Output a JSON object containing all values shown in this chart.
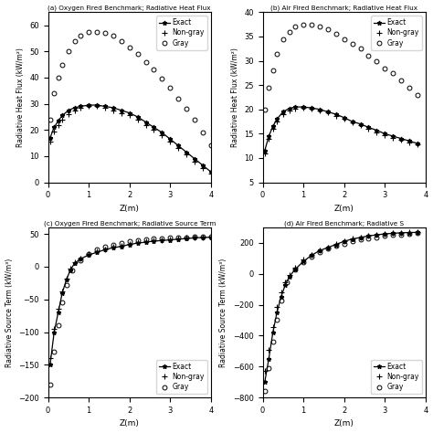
{
  "title_a": "(a) Oxygen Fired Benchmark; Radiative Heat Flux",
  "title_b": "(b) Air Fired Benchmark; Radiative Heat Flux",
  "title_c": "(c) Oxygen Fired Benchmark; Radiative Source Term",
  "title_d": "(d) Air Fired Benchmark; Radiative S",
  "xlabel": "Z(m)",
  "ylabel_heat": "Radiative Heat Flux (kW/m²)",
  "ylabel_source": "Radiative Source Term (kW/m³)",
  "legend_labels": [
    "Exact",
    "Non-gray",
    "Gray"
  ],
  "background_color": "#ffffff",
  "panel_a": {
    "exact_x": [
      0.05,
      0.15,
      0.25,
      0.35,
      0.5,
      0.65,
      0.8,
      1.0,
      1.2,
      1.4,
      1.6,
      1.8,
      2.0,
      2.2,
      2.4,
      2.6,
      2.8,
      3.0,
      3.2,
      3.4,
      3.6,
      3.8,
      4.0
    ],
    "exact_y": [
      17.0,
      21.0,
      23.5,
      25.5,
      27.5,
      28.5,
      29.0,
      29.5,
      29.5,
      29.0,
      28.5,
      27.5,
      26.5,
      25.0,
      23.0,
      21.0,
      19.0,
      16.5,
      14.0,
      11.5,
      9.0,
      6.5,
      4.0
    ],
    "nongray_x": [
      0.05,
      0.15,
      0.25,
      0.35,
      0.5,
      0.65,
      0.8,
      1.0,
      1.2,
      1.4,
      1.6,
      1.8,
      2.0,
      2.2,
      2.4,
      2.6,
      2.8,
      3.0,
      3.2,
      3.4,
      3.6,
      3.8,
      4.0
    ],
    "nongray_y": [
      15.5,
      19.5,
      22.0,
      24.0,
      26.0,
      27.5,
      28.5,
      29.0,
      29.0,
      28.5,
      27.5,
      26.5,
      25.5,
      24.0,
      22.0,
      20.0,
      18.0,
      15.5,
      13.0,
      10.5,
      8.0,
      5.5,
      3.5
    ],
    "gray_x": [
      0.05,
      0.15,
      0.25,
      0.35,
      0.5,
      0.65,
      0.8,
      1.0,
      1.2,
      1.4,
      1.6,
      1.8,
      2.0,
      2.2,
      2.4,
      2.6,
      2.8,
      3.0,
      3.2,
      3.4,
      3.6,
      3.8,
      4.0
    ],
    "gray_y": [
      24.0,
      34.0,
      40.0,
      45.0,
      50.0,
      54.0,
      56.0,
      57.5,
      57.5,
      57.0,
      56.0,
      54.0,
      51.5,
      49.0,
      46.0,
      43.0,
      39.5,
      36.0,
      32.0,
      28.0,
      24.0,
      19.0,
      14.0
    ],
    "ylim": [
      0,
      65
    ],
    "xlim": [
      0,
      4
    ]
  },
  "panel_b": {
    "exact_x": [
      0.05,
      0.15,
      0.25,
      0.35,
      0.5,
      0.65,
      0.8,
      1.0,
      1.2,
      1.4,
      1.6,
      1.8,
      2.0,
      2.2,
      2.4,
      2.6,
      2.8,
      3.0,
      3.2,
      3.4,
      3.6,
      3.8
    ],
    "exact_y": [
      11.5,
      14.5,
      16.5,
      18.0,
      19.5,
      20.2,
      20.5,
      20.5,
      20.3,
      20.0,
      19.5,
      19.0,
      18.3,
      17.5,
      17.0,
      16.3,
      15.7,
      15.0,
      14.5,
      14.0,
      13.5,
      13.0
    ],
    "nongray_x": [
      0.05,
      0.15,
      0.25,
      0.35,
      0.5,
      0.65,
      0.8,
      1.0,
      1.2,
      1.4,
      1.6,
      1.8,
      2.0,
      2.2,
      2.4,
      2.6,
      2.8,
      3.0,
      3.2,
      3.4,
      3.6,
      3.8
    ],
    "nongray_y": [
      11.0,
      14.0,
      16.0,
      17.5,
      19.0,
      19.8,
      20.2,
      20.3,
      20.1,
      19.8,
      19.3,
      18.7,
      18.0,
      17.3,
      16.7,
      16.0,
      15.3,
      14.7,
      14.2,
      13.7,
      13.2,
      12.8
    ],
    "gray_x": [
      0.05,
      0.15,
      0.25,
      0.35,
      0.5,
      0.65,
      0.8,
      1.0,
      1.2,
      1.4,
      1.6,
      1.8,
      2.0,
      2.2,
      2.4,
      2.6,
      2.8,
      3.0,
      3.2,
      3.4,
      3.6,
      3.8
    ],
    "gray_y": [
      20.0,
      24.5,
      28.0,
      31.5,
      34.5,
      36.0,
      37.0,
      37.5,
      37.5,
      37.0,
      36.5,
      35.5,
      34.5,
      33.5,
      32.5,
      31.0,
      30.0,
      28.5,
      27.5,
      26.0,
      24.5,
      23.0
    ],
    "ylim": [
      5,
      40
    ],
    "xlim": [
      0,
      4
    ]
  },
  "panel_c": {
    "exact_x": [
      0.05,
      0.15,
      0.25,
      0.35,
      0.45,
      0.55,
      0.65,
      0.8,
      1.0,
      1.2,
      1.4,
      1.6,
      1.8,
      2.0,
      2.2,
      2.4,
      2.6,
      2.8,
      3.0,
      3.2,
      3.4,
      3.6,
      3.8,
      4.0
    ],
    "exact_y": [
      -150.0,
      -100.0,
      -70.0,
      -40.0,
      -20.0,
      -5.0,
      5.0,
      12.0,
      18.0,
      22.0,
      26.0,
      29.0,
      31.0,
      34.0,
      36.0,
      37.5,
      39.0,
      40.0,
      41.0,
      42.0,
      43.0,
      44.0,
      44.5,
      45.0
    ],
    "nongray_x": [
      0.05,
      0.15,
      0.25,
      0.35,
      0.45,
      0.55,
      0.65,
      0.8,
      1.0,
      1.2,
      1.4,
      1.6,
      1.8,
      2.0,
      2.2,
      2.4,
      2.6,
      2.8,
      3.0,
      3.2,
      3.4,
      3.6,
      3.8,
      4.0
    ],
    "nongray_y": [
      -140.0,
      -95.0,
      -65.0,
      -38.0,
      -18.0,
      -3.0,
      6.5,
      13.0,
      19.0,
      23.0,
      27.0,
      30.0,
      32.0,
      35.0,
      37.0,
      38.5,
      40.0,
      41.0,
      42.0,
      43.0,
      44.0,
      44.5,
      45.0,
      45.5
    ],
    "gray_x": [
      0.05,
      0.15,
      0.25,
      0.35,
      0.45,
      0.6,
      0.8,
      1.0,
      1.2,
      1.4,
      1.6,
      1.8,
      2.0,
      2.2,
      2.4,
      2.6,
      2.8,
      3.0,
      3.2,
      3.4,
      3.6,
      3.8,
      4.0
    ],
    "gray_y": [
      -180.0,
      -130.0,
      -90.0,
      -55.0,
      -28.0,
      -5.0,
      10.0,
      20.0,
      27.0,
      31.0,
      34.0,
      36.5,
      38.5,
      40.5,
      41.5,
      42.5,
      43.5,
      44.0,
      44.5,
      45.0,
      45.5,
      46.0,
      46.5
    ],
    "ylim": [
      -200,
      60
    ],
    "xlim": [
      0,
      4
    ]
  },
  "panel_d": {
    "exact_x": [
      0.05,
      0.15,
      0.25,
      0.35,
      0.45,
      0.55,
      0.65,
      0.8,
      1.0,
      1.2,
      1.4,
      1.6,
      1.8,
      2.0,
      2.2,
      2.4,
      2.6,
      2.8,
      3.0,
      3.2,
      3.4,
      3.6,
      3.8
    ],
    "exact_y": [
      -700.0,
      -550.0,
      -380.0,
      -250.0,
      -150.0,
      -75.0,
      -20.0,
      30.0,
      80.0,
      120.0,
      150.0,
      170.0,
      190.0,
      210.0,
      225.0,
      235.0,
      245.0,
      252.0,
      258.0,
      262.0,
      265.0,
      267.0,
      268.0
    ],
    "nongray_x": [
      0.05,
      0.15,
      0.25,
      0.35,
      0.45,
      0.55,
      0.65,
      0.8,
      1.0,
      1.2,
      1.4,
      1.6,
      1.8,
      2.0,
      2.2,
      2.4,
      2.6,
      2.8,
      3.0,
      3.2,
      3.4,
      3.6,
      3.8
    ],
    "nongray_y": [
      -630.0,
      -490.0,
      -345.0,
      -215.0,
      -120.0,
      -52.0,
      -5.0,
      42.0,
      90.0,
      125.0,
      152.0,
      172.0,
      192.0,
      212.0,
      227.0,
      237.0,
      247.0,
      254.0,
      260.0,
      264.0,
      267.0,
      269.0,
      270.0
    ],
    "gray_x": [
      0.05,
      0.15,
      0.25,
      0.35,
      0.45,
      0.6,
      0.8,
      1.0,
      1.2,
      1.4,
      1.6,
      1.8,
      2.0,
      2.2,
      2.4,
      2.6,
      2.8,
      3.0,
      3.2,
      3.4,
      3.6,
      3.8
    ],
    "gray_y": [
      -760.0,
      -610.0,
      -440.0,
      -295.0,
      -175.0,
      -55.0,
      30.0,
      78.0,
      113.0,
      142.0,
      163.0,
      180.0,
      196.0,
      210.0,
      220.0,
      229.0,
      237.0,
      244.0,
      250.0,
      255.0,
      259.0,
      262.0
    ],
    "ylim": [
      -800,
      300
    ],
    "xlim": [
      0,
      4
    ]
  }
}
